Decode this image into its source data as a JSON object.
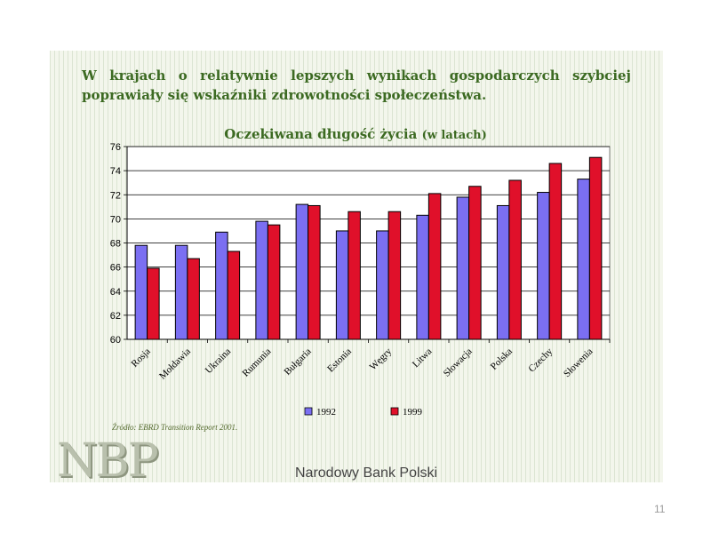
{
  "slide": {
    "headline_line1": "W krajach o relatywnie lepszych wynikach gospodarczych szybciej",
    "headline_line2": "poprawiały się wskaźniki zdrowotności społeczeństwa.",
    "chart_title_main": "Oczekiwana długość życia",
    "chart_title_sub": "(w latach)",
    "source": "Źródło: EBRD Transition Report 2001.",
    "logo_text": "NBP",
    "bank_name": "Narodowy Bank Polski",
    "page_number": "11"
  },
  "colors": {
    "series_1992": "#7b6ff2",
    "series_1999": "#e0102a",
    "plot_bg": "#ffffff",
    "grid": "#000000"
  },
  "chart_data": {
    "type": "bar",
    "title": "Oczekiwana długość życia (w latach)",
    "xlabel": "",
    "ylabel": "",
    "ylim": [
      60,
      76
    ],
    "yticks": [
      60,
      62,
      64,
      66,
      68,
      70,
      72,
      74,
      76
    ],
    "grid": true,
    "legend": "bottom",
    "categories": [
      "Rosja",
      "Mołdawia",
      "Ukraina",
      "Rumunia",
      "Bułgaria",
      "Estonia",
      "Węgry",
      "Litwa",
      "Słowacja",
      "Polska",
      "Czechy",
      "Słowenia"
    ],
    "series": [
      {
        "name": "1992",
        "color": "#7b6ff2",
        "values": [
          67.8,
          67.8,
          68.9,
          69.8,
          71.2,
          69.0,
          69.0,
          70.3,
          71.8,
          71.1,
          72.2,
          73.3
        ]
      },
      {
        "name": "1999",
        "color": "#e0102a",
        "values": [
          65.9,
          66.7,
          67.3,
          69.5,
          71.1,
          70.6,
          70.6,
          72.1,
          72.7,
          73.2,
          74.6,
          75.1
        ]
      }
    ]
  }
}
